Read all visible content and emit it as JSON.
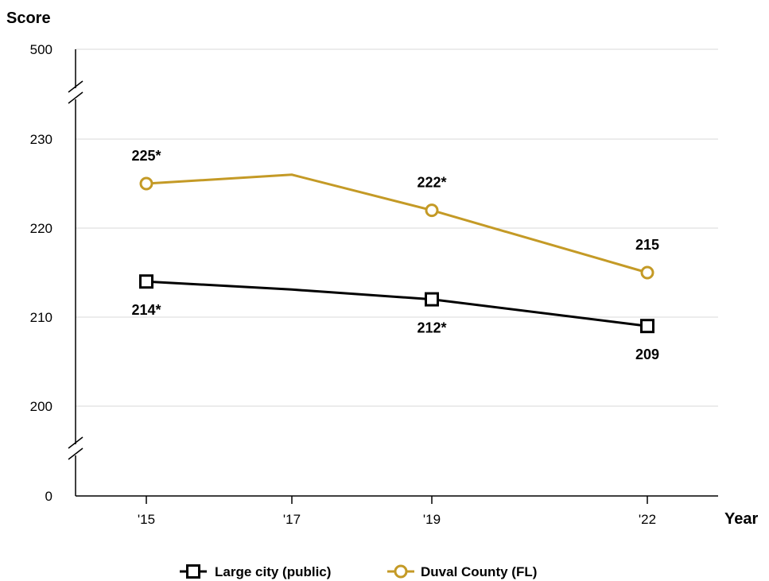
{
  "chart_data": {
    "type": "line",
    "ylabel": "Score",
    "xlabel": "Year",
    "x": [
      "'15",
      "'17",
      "'19",
      "'22"
    ],
    "y_ticks": [
      0,
      200,
      210,
      220,
      230,
      500
    ],
    "y_break_range": [
      200,
      230
    ],
    "grid": true,
    "legend_position": "bottom-center",
    "series": [
      {
        "name": "Large city (public)",
        "color": "#000000",
        "marker": "square",
        "values": [
          214,
          213.1,
          212,
          209
        ],
        "labels": [
          "214*",
          "",
          "212*",
          "209"
        ],
        "label_position": "below"
      },
      {
        "name": "Duval County (FL)",
        "color": "#c49a26",
        "marker": "circle",
        "values": [
          225,
          226,
          222,
          215
        ],
        "labels": [
          "225*",
          "",
          "222*",
          "215"
        ],
        "label_position": "above"
      }
    ],
    "marker_indices": [
      0,
      2,
      3
    ]
  }
}
